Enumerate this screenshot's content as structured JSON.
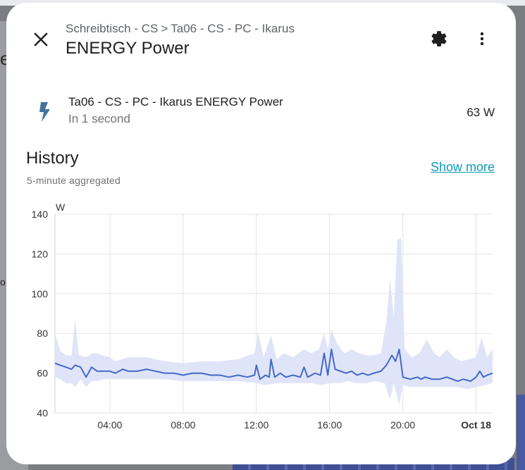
{
  "dialog": {
    "breadcrumb": [
      "Schreibtisch - CS",
      "Ta06 - CS - PC - Ikarus"
    ],
    "breadcrumb_separator": ">",
    "title": "ENERGY Power"
  },
  "icons": {
    "close": "close-icon",
    "settings": "gear-icon",
    "more": "dots-vertical-icon",
    "entity": "lightning-bolt-icon"
  },
  "entity": {
    "name": "Ta06 - CS - PC - Ikarus ENERGY Power",
    "secondary": "In 1 second",
    "value": "63 W"
  },
  "history": {
    "title": "History",
    "subtitle": "5-minute aggregated",
    "show_more": "Show more"
  },
  "colors": {
    "accent": "#0f9bb8",
    "series_line": "#4468c8",
    "series_band": "#dfe4f8"
  },
  "chart_data": {
    "type": "line",
    "unit": "W",
    "ylim": [
      40,
      140
    ],
    "yticks": [
      "40",
      "60",
      "80",
      "100",
      "120",
      "140"
    ],
    "xlim_hours": [
      1.0,
      24.9
    ],
    "xticks": [
      {
        "label": "04:00",
        "hour": 4,
        "bold": false
      },
      {
        "label": "08:00",
        "hour": 8,
        "bold": false
      },
      {
        "label": "12:00",
        "hour": 12,
        "bold": false
      },
      {
        "label": "16:00",
        "hour": 16,
        "bold": false
      },
      {
        "label": "20:00",
        "hour": 20,
        "bold": false
      },
      {
        "label": "Oct 18",
        "hour": 24,
        "bold": true
      }
    ],
    "grid": true,
    "series": [
      {
        "mean": [
          [
            1.0,
            65
          ],
          [
            1.3,
            64
          ],
          [
            1.6,
            63
          ],
          [
            1.9,
            62
          ],
          [
            2.1,
            64
          ],
          [
            2.4,
            63
          ],
          [
            2.7,
            58
          ],
          [
            3.0,
            63
          ],
          [
            3.3,
            61
          ],
          [
            3.6,
            61
          ],
          [
            4.0,
            61
          ],
          [
            4.3,
            60
          ],
          [
            4.7,
            62
          ],
          [
            5.0,
            61
          ],
          [
            5.5,
            61
          ],
          [
            6.0,
            62
          ],
          [
            6.5,
            61
          ],
          [
            7.0,
            60
          ],
          [
            7.5,
            60
          ],
          [
            8.0,
            59
          ],
          [
            8.5,
            60
          ],
          [
            9.0,
            60
          ],
          [
            9.5,
            59
          ],
          [
            10.0,
            59
          ],
          [
            10.5,
            58
          ],
          [
            11.0,
            59
          ],
          [
            11.5,
            58
          ],
          [
            11.9,
            59
          ],
          [
            12.0,
            64
          ],
          [
            12.2,
            57
          ],
          [
            12.5,
            59
          ],
          [
            12.7,
            58
          ],
          [
            12.8,
            67
          ],
          [
            13.0,
            58
          ],
          [
            13.3,
            60
          ],
          [
            13.6,
            58
          ],
          [
            14.0,
            59
          ],
          [
            14.4,
            58
          ],
          [
            14.6,
            63
          ],
          [
            14.8,
            58
          ],
          [
            15.2,
            60
          ],
          [
            15.5,
            59
          ],
          [
            15.7,
            70
          ],
          [
            15.9,
            59
          ],
          [
            16.1,
            72
          ],
          [
            16.3,
            62
          ],
          [
            16.6,
            61
          ],
          [
            16.9,
            60
          ],
          [
            17.2,
            61
          ],
          [
            17.5,
            59
          ],
          [
            17.8,
            60
          ],
          [
            18.1,
            59
          ],
          [
            18.4,
            60
          ],
          [
            18.8,
            61
          ],
          [
            19.1,
            64
          ],
          [
            19.4,
            69
          ],
          [
            19.6,
            66
          ],
          [
            19.8,
            72
          ],
          [
            20.0,
            58
          ],
          [
            20.4,
            57
          ],
          [
            20.8,
            58
          ],
          [
            21.0,
            57
          ],
          [
            21.2,
            58
          ],
          [
            21.6,
            57
          ],
          [
            22.0,
            57
          ],
          [
            22.4,
            58
          ],
          [
            22.7,
            57
          ],
          [
            23.0,
            56
          ],
          [
            23.3,
            57
          ],
          [
            23.7,
            56
          ],
          [
            24.0,
            58
          ],
          [
            24.2,
            61
          ],
          [
            24.4,
            58
          ],
          [
            24.6,
            59
          ],
          [
            24.9,
            60
          ]
        ],
        "max": [
          [
            1.0,
            80
          ],
          [
            1.3,
            71
          ],
          [
            1.6,
            69
          ],
          [
            1.9,
            69
          ],
          [
            2.1,
            87
          ],
          [
            2.3,
            69
          ],
          [
            2.7,
            68
          ],
          [
            3.0,
            70
          ],
          [
            3.3,
            70
          ],
          [
            3.6,
            69
          ],
          [
            4.0,
            68
          ],
          [
            4.3,
            66
          ],
          [
            5.0,
            68
          ],
          [
            6.0,
            68
          ],
          [
            7.0,
            66
          ],
          [
            8.0,
            65
          ],
          [
            9.0,
            66
          ],
          [
            10.0,
            66
          ],
          [
            11.0,
            67
          ],
          [
            11.9,
            70
          ],
          [
            12.1,
            80
          ],
          [
            12.4,
            68
          ],
          [
            12.8,
            79
          ],
          [
            13.1,
            67
          ],
          [
            13.5,
            70
          ],
          [
            14.0,
            68
          ],
          [
            14.6,
            72
          ],
          [
            15.0,
            70
          ],
          [
            15.4,
            72
          ],
          [
            15.7,
            80
          ],
          [
            15.9,
            72
          ],
          [
            16.1,
            82
          ],
          [
            16.4,
            75
          ],
          [
            16.8,
            70
          ],
          [
            17.2,
            72
          ],
          [
            17.6,
            70
          ],
          [
            18.0,
            69
          ],
          [
            18.4,
            69
          ],
          [
            18.8,
            70
          ],
          [
            19.1,
            86
          ],
          [
            19.3,
            108
          ],
          [
            19.5,
            88
          ],
          [
            19.7,
            127
          ],
          [
            19.9,
            128
          ],
          [
            20.1,
            72
          ],
          [
            20.5,
            68
          ],
          [
            20.9,
            70
          ],
          [
            21.3,
            77
          ],
          [
            21.7,
            70
          ],
          [
            22.0,
            68
          ],
          [
            22.4,
            72
          ],
          [
            22.8,
            68
          ],
          [
            23.2,
            66
          ],
          [
            23.6,
            67
          ],
          [
            24.0,
            68
          ],
          [
            24.3,
            78
          ],
          [
            24.6,
            68
          ],
          [
            24.9,
            72
          ]
        ],
        "min": [
          [
            1.0,
            58
          ],
          [
            1.3,
            57
          ],
          [
            1.6,
            55
          ],
          [
            1.9,
            55
          ],
          [
            2.1,
            53
          ],
          [
            2.4,
            57
          ],
          [
            2.7,
            53
          ],
          [
            3.0,
            56
          ],
          [
            3.3,
            56
          ],
          [
            3.6,
            57
          ],
          [
            4.0,
            57
          ],
          [
            5.0,
            57
          ],
          [
            6.0,
            57
          ],
          [
            7.0,
            57
          ],
          [
            8.0,
            56
          ],
          [
            9.0,
            56
          ],
          [
            10.0,
            56
          ],
          [
            11.0,
            56
          ],
          [
            12.0,
            55
          ],
          [
            12.5,
            54
          ],
          [
            13.0,
            55
          ],
          [
            13.5,
            55
          ],
          [
            14.0,
            55
          ],
          [
            14.5,
            55
          ],
          [
            15.0,
            55
          ],
          [
            15.5,
            54
          ],
          [
            16.0,
            55
          ],
          [
            16.5,
            55
          ],
          [
            17.0,
            56
          ],
          [
            17.5,
            55
          ],
          [
            18.0,
            55
          ],
          [
            18.5,
            56
          ],
          [
            19.0,
            55
          ],
          [
            19.3,
            47
          ],
          [
            19.5,
            55
          ],
          [
            19.8,
            44
          ],
          [
            20.0,
            54
          ],
          [
            20.4,
            53
          ],
          [
            21.0,
            53
          ],
          [
            21.5,
            53
          ],
          [
            22.0,
            53
          ],
          [
            22.5,
            53
          ],
          [
            23.0,
            53
          ],
          [
            23.5,
            52
          ],
          [
            24.0,
            53
          ],
          [
            24.5,
            54
          ],
          [
            24.9,
            55
          ]
        ]
      }
    ]
  }
}
